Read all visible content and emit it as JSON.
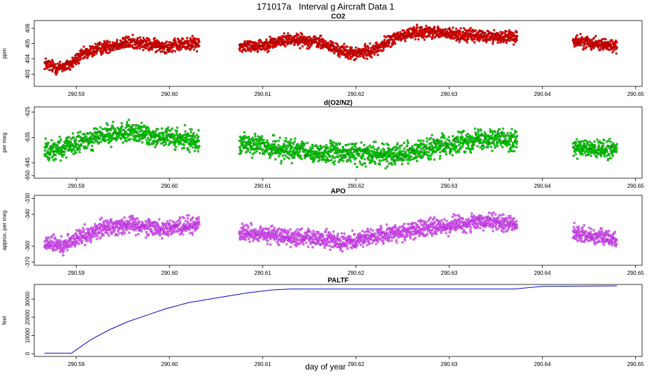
{
  "title": "171017a   Interval g Aircraft Data 1",
  "xlabel": "day of year",
  "colors": {
    "co2_fill": "#ff0000",
    "co2_edge": "#800000",
    "o2n2_fill": "#00ee00",
    "o2n2_edge": "#006400",
    "apo_fill": "#ee82ee",
    "apo_edge": "#9400d3",
    "paltf_line": "#0000cd"
  },
  "chart_data": [
    {
      "type": "scatter",
      "title": "CO2",
      "ylabel": "ppm",
      "xlim": [
        290.5855,
        290.6507
      ],
      "ylim": [
        402.2,
        406.5
      ],
      "x_ticks": [
        "290.59",
        "290.60",
        "290.61",
        "290.62",
        "290.63",
        "290.64",
        "290.65"
      ],
      "y_ticks": [
        "403",
        "404",
        "405",
        "406"
      ],
      "segments": [
        {
          "x_start": 290.5866,
          "x_end": 290.6032,
          "anchors": [
            [
              290.5866,
              403.7
            ],
            [
              290.588,
              403.4
            ],
            [
              290.5893,
              403.6
            ],
            [
              290.5905,
              404.2
            ],
            [
              290.592,
              404.6
            ],
            [
              290.594,
              404.9
            ],
            [
              290.596,
              405.1
            ],
            [
              290.598,
              404.9
            ],
            [
              290.6,
              404.8
            ],
            [
              290.602,
              405.0
            ],
            [
              290.6032,
              405.0
            ]
          ],
          "noise": 0.35
        },
        {
          "x_start": 290.6075,
          "x_end": 290.6373,
          "anchors": [
            [
              290.6075,
              404.8
            ],
            [
              290.61,
              404.9
            ],
            [
              290.613,
              405.3
            ],
            [
              290.616,
              405.1
            ],
            [
              290.618,
              404.6
            ],
            [
              290.62,
              404.3
            ],
            [
              290.622,
              404.6
            ],
            [
              290.624,
              405.3
            ],
            [
              290.626,
              405.7
            ],
            [
              290.628,
              405.8
            ],
            [
              290.63,
              405.6
            ],
            [
              290.633,
              405.5
            ],
            [
              290.6373,
              405.4
            ]
          ],
          "noise": 0.35
        },
        {
          "x_start": 290.6433,
          "x_end": 290.648,
          "anchors": [
            [
              290.6433,
              405.2
            ],
            [
              290.646,
              405.0
            ],
            [
              290.648,
              404.8
            ]
          ],
          "noise": 0.35
        }
      ]
    },
    {
      "type": "scatter",
      "title": "d(O2/N2)",
      "ylabel": "per meg",
      "xlim": [
        290.5855,
        290.6507
      ],
      "ylim": [
        -651,
        -623
      ],
      "x_ticks": [
        "290.59",
        "290.60",
        "290.61",
        "290.62",
        "290.63",
        "290.64",
        "290.65"
      ],
      "y_ticks": [
        "-650",
        "-645",
        "-635",
        "-625"
      ],
      "segments": [
        {
          "x_start": 290.5866,
          "x_end": 290.6032,
          "anchors": [
            [
              290.5866,
              -640
            ],
            [
              290.589,
              -639
            ],
            [
              290.592,
              -635
            ],
            [
              290.595,
              -633
            ],
            [
              290.598,
              -634
            ],
            [
              290.601,
              -636
            ],
            [
              290.6032,
              -636
            ]
          ],
          "noise": 3.5
        },
        {
          "x_start": 290.6075,
          "x_end": 290.6373,
          "anchors": [
            [
              290.6075,
              -637
            ],
            [
              290.611,
              -639
            ],
            [
              290.615,
              -641
            ],
            [
              290.619,
              -641
            ],
            [
              290.623,
              -642
            ],
            [
              290.627,
              -640
            ],
            [
              290.631,
              -637
            ],
            [
              290.634,
              -635
            ],
            [
              290.6373,
              -636
            ]
          ],
          "noise": 3.5
        },
        {
          "x_start": 290.6433,
          "x_end": 290.648,
          "anchors": [
            [
              290.6433,
              -639
            ],
            [
              290.646,
              -640
            ],
            [
              290.648,
              -640
            ]
          ],
          "noise": 3.0
        }
      ]
    },
    {
      "type": "scatter",
      "title": "APO",
      "ylabel": "approx. per meg",
      "xlim": [
        290.5855,
        290.6507
      ],
      "ylim": [
        -372,
        -328
      ],
      "x_ticks": [
        "290.59",
        "290.60",
        "290.61",
        "290.62",
        "290.63",
        "290.64",
        "290.65"
      ],
      "y_ticks": [
        "-370",
        "-360",
        "-340",
        "-330"
      ],
      "segments": [
        {
          "x_start": 290.5866,
          "x_end": 290.6032,
          "anchors": [
            [
              290.5866,
              -358
            ],
            [
              290.5885,
              -360
            ],
            [
              290.5905,
              -354
            ],
            [
              290.593,
              -348
            ],
            [
              290.596,
              -346
            ],
            [
              290.599,
              -349
            ],
            [
              290.6032,
              -346
            ]
          ],
          "noise": 4.5
        },
        {
          "x_start": 290.6075,
          "x_end": 290.6373,
          "anchors": [
            [
              290.6075,
              -352
            ],
            [
              290.611,
              -353
            ],
            [
              290.615,
              -355
            ],
            [
              290.619,
              -357
            ],
            [
              290.623,
              -353
            ],
            [
              290.627,
              -349
            ],
            [
              290.631,
              -346
            ],
            [
              290.634,
              -345
            ],
            [
              290.6373,
              -346
            ]
          ],
          "noise": 4.5
        },
        {
          "x_start": 290.6433,
          "x_end": 290.648,
          "anchors": [
            [
              290.6433,
              -352
            ],
            [
              290.646,
              -354
            ],
            [
              290.648,
              -356
            ]
          ],
          "noise": 4.0
        }
      ]
    },
    {
      "type": "line",
      "title": "PALTF",
      "ylabel": "feet",
      "xlim": [
        290.5855,
        290.6507
      ],
      "ylim": [
        -1500,
        38000
      ],
      "x_ticks": [
        "290.59",
        "290.60",
        "290.61",
        "290.62",
        "290.63",
        "290.64",
        "290.65"
      ],
      "y_ticks": [
        "0",
        "10000",
        "20000",
        "30000"
      ],
      "x": [
        290.5866,
        290.5895,
        290.5915,
        290.5935,
        290.5955,
        290.5975,
        290.5995,
        290.602,
        290.6055,
        290.6085,
        290.611,
        290.613,
        290.62,
        290.63,
        290.637,
        290.64,
        290.648
      ],
      "y": [
        300,
        300,
        7500,
        13000,
        17500,
        21000,
        24500,
        28000,
        31000,
        33500,
        35000,
        35500,
        35500,
        35500,
        35500,
        37000,
        37200
      ]
    }
  ]
}
